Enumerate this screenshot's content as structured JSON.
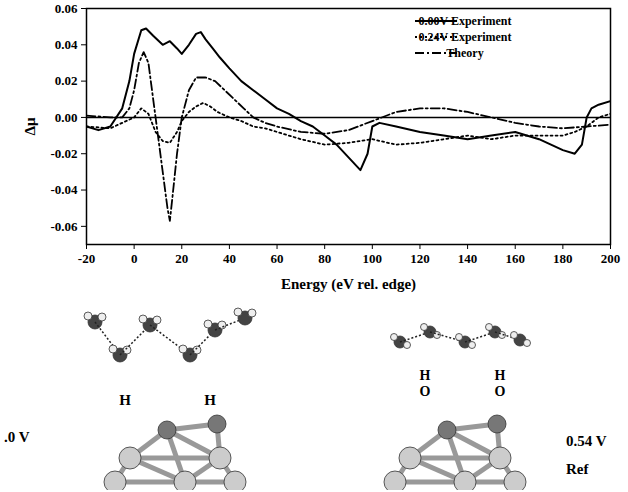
{
  "chart_data": {
    "type": "line",
    "xlabel": "Energy (eV rel. edge)",
    "ylabel": "Δμ",
    "xlim": [
      -20,
      200
    ],
    "xticks": [
      -20,
      0,
      20,
      40,
      60,
      80,
      100,
      120,
      140,
      160,
      180,
      200
    ],
    "ylim": [
      -0.07,
      0.06
    ],
    "yticks": [
      -0.06,
      -0.04,
      -0.02,
      {
        "value": 0,
        "label": "0.00"
      },
      0.02,
      0.04,
      0.06
    ],
    "grid": false,
    "legend": "top-right",
    "series": [
      {
        "name": "0.00V Experiment",
        "color": "#000000",
        "line_style": "solid",
        "x": [
          -20,
          -15,
          -10,
          -5,
          -2,
          0,
          3,
          5,
          8,
          12,
          15,
          18,
          20,
          23,
          26,
          28,
          30,
          33,
          36,
          40,
          45,
          50,
          55,
          60,
          65,
          70,
          75,
          80,
          85,
          90,
          95,
          98,
          100,
          103,
          110,
          120,
          130,
          140,
          150,
          160,
          170,
          175,
          180,
          185,
          188,
          190,
          192,
          195,
          200
        ],
        "values": [
          -0.005,
          -0.007,
          -0.005,
          0.005,
          0.02,
          0.035,
          0.048,
          0.049,
          0.045,
          0.04,
          0.042,
          0.038,
          0.035,
          0.04,
          0.046,
          0.047,
          0.043,
          0.038,
          0.033,
          0.027,
          0.02,
          0.015,
          0.01,
          0.005,
          0.002,
          -0.002,
          -0.005,
          -0.01,
          -0.015,
          -0.022,
          -0.029,
          -0.02,
          -0.005,
          -0.003,
          -0.005,
          -0.008,
          -0.01,
          -0.012,
          -0.01,
          -0.008,
          -0.012,
          -0.015,
          -0.018,
          -0.02,
          -0.015,
          0.0,
          0.005,
          0.007,
          0.009
        ]
      },
      {
        "name": "0.24V Experiment",
        "color": "#000000",
        "line_style": "dotted",
        "x": [
          -20,
          -10,
          -5,
          0,
          3,
          6,
          9,
          12,
          15,
          18,
          20,
          23,
          26,
          29,
          32,
          35,
          40,
          45,
          50,
          55,
          60,
          70,
          80,
          90,
          100,
          110,
          120,
          130,
          140,
          150,
          160,
          170,
          180,
          185,
          190,
          195,
          200
        ],
        "values": [
          -0.005,
          -0.006,
          -0.003,
          0.0,
          0.005,
          0.002,
          -0.008,
          -0.013,
          -0.014,
          -0.008,
          -0.002,
          0.003,
          0.006,
          0.008,
          0.006,
          0.003,
          0.0,
          -0.002,
          -0.005,
          -0.006,
          -0.008,
          -0.012,
          -0.015,
          -0.014,
          -0.012,
          -0.015,
          -0.014,
          -0.012,
          -0.01,
          -0.012,
          -0.01,
          -0.01,
          -0.01,
          -0.008,
          -0.005,
          0.0,
          0.002
        ]
      },
      {
        "name": "Theory",
        "color": "#000000",
        "line_style": "dashdot",
        "x": [
          -20,
          -10,
          -5,
          -2,
          0,
          2,
          4,
          6,
          8,
          10,
          12,
          14,
          15,
          16,
          18,
          20,
          23,
          26,
          30,
          34,
          38,
          42,
          46,
          50,
          55,
          60,
          70,
          80,
          90,
          100,
          110,
          120,
          130,
          140,
          150,
          160,
          170,
          180,
          190,
          200
        ],
        "values": [
          0.001,
          0.0,
          0.0,
          0.005,
          0.015,
          0.03,
          0.036,
          0.03,
          0.01,
          -0.01,
          -0.03,
          -0.05,
          -0.057,
          -0.045,
          -0.02,
          0.0,
          0.015,
          0.022,
          0.022,
          0.02,
          0.015,
          0.01,
          0.005,
          0.0,
          -0.003,
          -0.005,
          -0.008,
          -0.009,
          -0.007,
          -0.002,
          0.003,
          0.005,
          0.005,
          0.003,
          0.0,
          -0.003,
          -0.005,
          -0.006,
          -0.005,
          -0.004
        ]
      }
    ]
  },
  "diagram": {
    "left": {
      "potential": ".0 V",
      "site_labels": [
        "H",
        "H"
      ]
    },
    "right": {
      "potential": "0.54 V",
      "note": "Ref",
      "site_labels": [
        [
          "H",
          "O"
        ],
        [
          "H",
          "O"
        ]
      ]
    }
  }
}
